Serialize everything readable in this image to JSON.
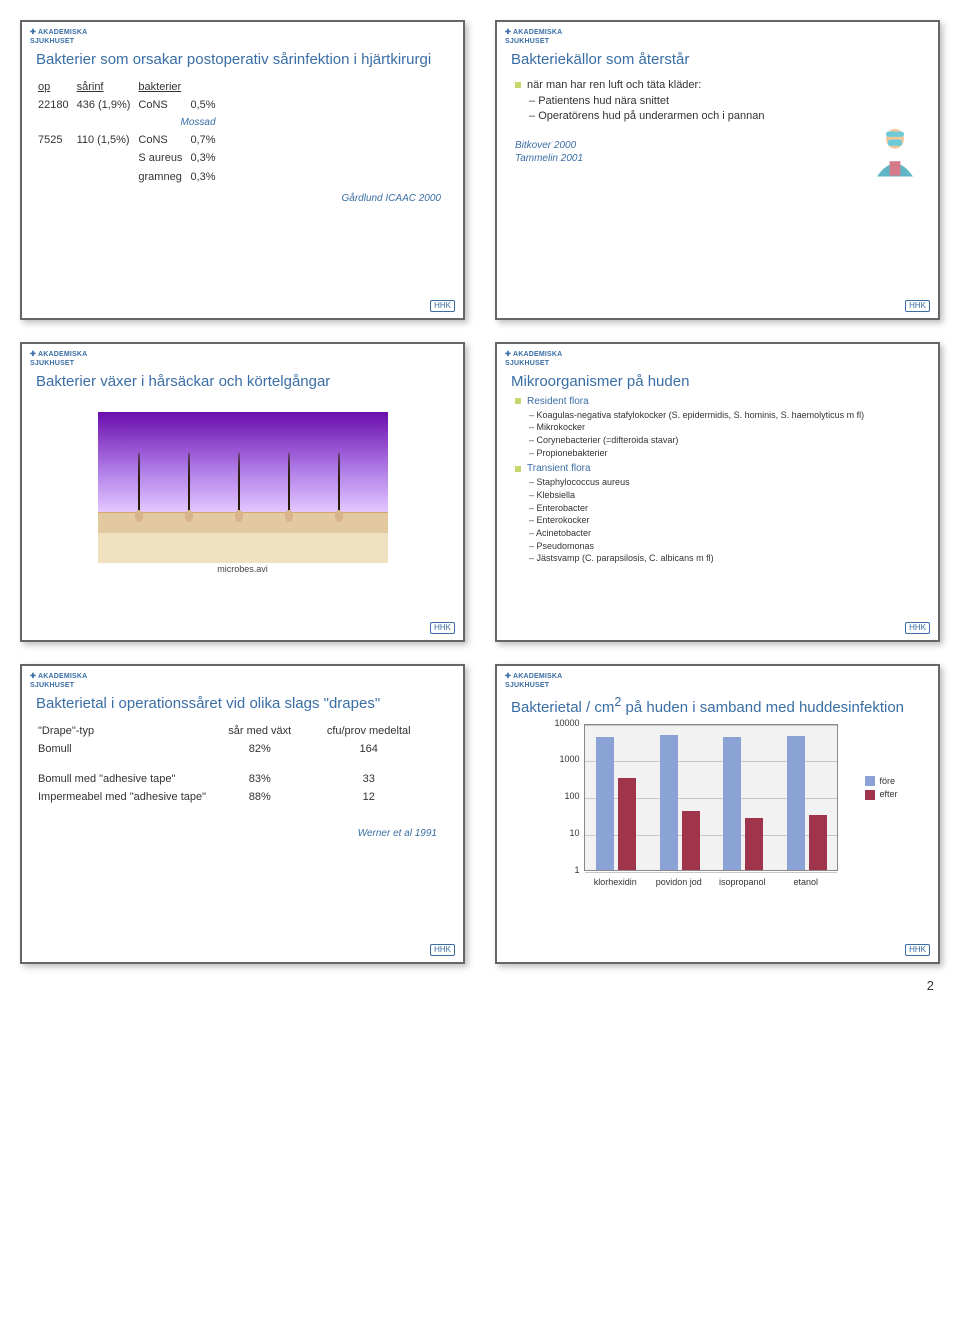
{
  "logo_text": "AKADEMISKA\\nSJUKHUSET",
  "corner_badge": "HHK",
  "page_number": "2",
  "slide1": {
    "title": "Bakterier som orsakar postoperativ sårinfektion i hjärtkirurgi",
    "headers": [
      "op",
      "sårinf",
      "bakterier"
    ],
    "row1": [
      "22180",
      "436 (1,9%)",
      "CoNS",
      "0,5%"
    ],
    "row2_note": "Mossad",
    "row2": [
      "7525",
      "110 (1,5%)",
      "CoNS",
      "0,7%"
    ],
    "row3": [
      "",
      "",
      "S aureus",
      "0,3%"
    ],
    "row4": [
      "",
      "",
      "gramneg",
      "0,3%"
    ],
    "cite": "Gårdlund ICAAC 2000"
  },
  "slide2": {
    "title": "Bakteriekällor som återstår",
    "lead": "när man har ren luft och täta kläder:",
    "items": [
      "Patientens hud nära snittet",
      "Operatörens hud på underarmen och i pannan"
    ],
    "cite1": "Bitkover 2000",
    "cite2": "Tammelin 2001"
  },
  "slide3": {
    "title": "Bakterier växer i hårsäckar och körtelgångar",
    "micro_label": "microbes.avi"
  },
  "slide4": {
    "title": "Mikroorganismer på huden",
    "section1": "Resident flora",
    "s1_items": [
      "Koagulas-negativa stafylokocker (S. epidermidis, S. hominis, S. haemolyticus m fl)",
      "Mikrokocker",
      "Corynebacterier (=difteroida stavar)",
      "Propionebakterier"
    ],
    "section2": "Transient flora",
    "s2_items": [
      "Staphylococcus aureus",
      "Klebsiella",
      "Enterobacter",
      "Enterokocker",
      "Acinetobacter",
      "Pseudomonas",
      "Jästsvamp (C. parapsilosis, C. albicans m fl)"
    ]
  },
  "slide5": {
    "title": "Bakterietal i operationssåret vid olika slags \"drapes\"",
    "cols": [
      "\"Drape\"-typ",
      "sår med växt",
      "cfu/prov medeltal"
    ],
    "rows": [
      [
        "Bomull",
        "82%",
        "164"
      ],
      [
        "Bomull med \"adhesive tape\"",
        "83%",
        "33"
      ],
      [
        "Impermeabel med \"adhesive tape\"",
        "88%",
        "12"
      ]
    ],
    "cite": "Werner et al 1991"
  },
  "slide6": {
    "title_l1": "Bakterietal / cm",
    "title_sup": "2",
    "title_l2": " på huden i samband med huddesinfektion",
    "yticks": [
      "10000",
      "1000",
      "100",
      "10",
      "1"
    ],
    "x_categories": [
      "klorhexidin",
      "povidon jod",
      "isopropanol",
      "etanol"
    ],
    "legend": [
      "före",
      "efter"
    ],
    "colors": {
      "fore": "#8aa3d4",
      "efter": "#a0344a",
      "plot_bg": "#f2f2f2",
      "grid": "#c7c7c7"
    },
    "series": {
      "fore": [
        4000,
        4500,
        4000,
        4200
      ],
      "efter": [
        300,
        40,
        25,
        30
      ]
    },
    "ylim": [
      1,
      10000
    ],
    "scale": "log"
  }
}
